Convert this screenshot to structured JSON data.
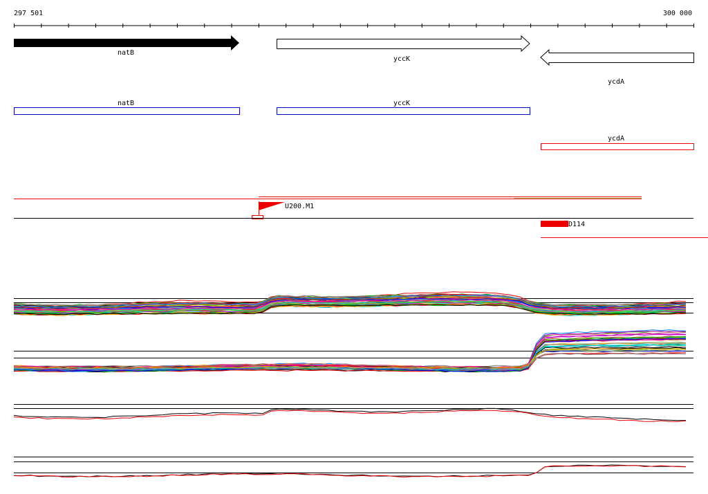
{
  "ruler": {
    "start": "297 501",
    "end": "300 000"
  },
  "genes": [
    {
      "label": "natB"
    },
    {
      "label": "yccK"
    },
    {
      "label": "ycdA"
    }
  ],
  "annotations": [
    {
      "label": "natB"
    },
    {
      "label": "yccK"
    },
    {
      "label": "ycdA"
    }
  ],
  "features": [
    {
      "label": "U200.M1"
    },
    {
      "label": "D114"
    }
  ]
}
